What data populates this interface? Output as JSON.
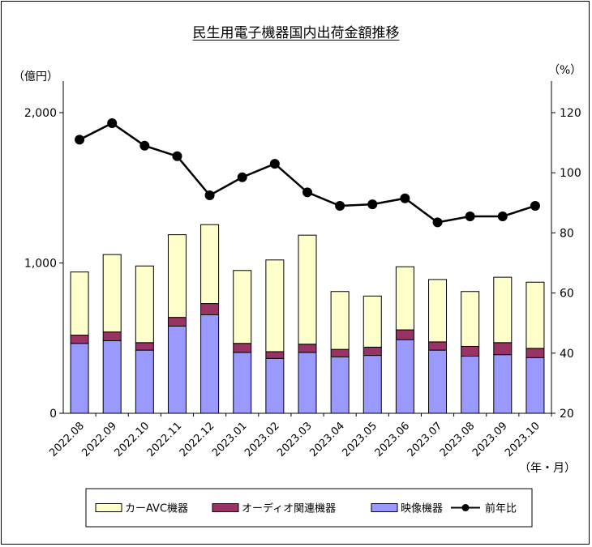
{
  "chart_data": {
    "type": "bar",
    "title": "民生用電子機器国内出荷金額推移",
    "ylabel_left": "（億円）",
    "ylabel_right": "（%）",
    "xlabel": "（年・月）",
    "ylim_left": [
      0,
      2000
    ],
    "ylim_right": [
      20,
      120
    ],
    "yticks_left": [
      "0",
      "1,000",
      "2,000"
    ],
    "yticks_right": [
      "20",
      "40",
      "60",
      "80",
      "100",
      "120"
    ],
    "categories": [
      "2022.08",
      "2022.09",
      "2022.10",
      "2022.11",
      "2022.12",
      "2023.01",
      "2023.02",
      "2023.03",
      "2023.04",
      "2023.05",
      "2023.06",
      "2023.07",
      "2023.08",
      "2023.09",
      "2023.10"
    ],
    "stacked": true,
    "series": [
      {
        "name": "映像機器",
        "color": "#9999ff",
        "axis": "left",
        "values": [
          465,
          483,
          420,
          580,
          655,
          405,
          365,
          405,
          375,
          385,
          490,
          420,
          380,
          390,
          370
        ]
      },
      {
        "name": "オーディオ関連機器",
        "color": "#993366",
        "axis": "left",
        "values": [
          55,
          58,
          50,
          58,
          75,
          60,
          45,
          55,
          50,
          55,
          65,
          55,
          65,
          80,
          62
        ]
      },
      {
        "name": "カーAVC機器",
        "color": "#ffffcc",
        "axis": "left",
        "values": [
          420,
          515,
          510,
          550,
          525,
          485,
          610,
          725,
          385,
          340,
          420,
          415,
          365,
          435,
          440
        ]
      },
      {
        "name": "前年比",
        "type": "line",
        "color": "#000000",
        "axis": "right",
        "values": [
          111,
          116.5,
          109,
          105.5,
          92.5,
          98.5,
          103,
          93.5,
          89,
          89.5,
          91.5,
          83.5,
          85.5,
          85.5,
          89
        ]
      }
    ],
    "legend": {
      "position": "bottom",
      "order": [
        "カーAVC機器",
        "オーディオ関連機器",
        "映像機器",
        "前年比"
      ]
    },
    "grid": false
  }
}
